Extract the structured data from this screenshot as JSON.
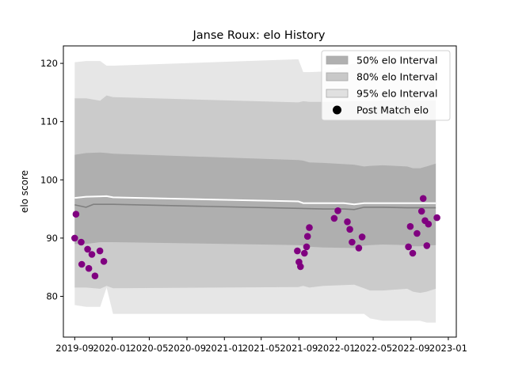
{
  "chart_data": {
    "type": "scatter",
    "title": "Janse Roux: elo History",
    "xlabel": "",
    "ylabel": "elo score",
    "x_axis_kind": "date",
    "xlim": [
      "2019-07-26",
      "2023-01-27"
    ],
    "ylim": [
      73,
      123
    ],
    "x_ticks": [
      {
        "date": "2019-09-01",
        "label": "2019-09"
      },
      {
        "date": "2020-01-01",
        "label": "2020-01"
      },
      {
        "date": "2020-05-01",
        "label": "2020-05"
      },
      {
        "date": "2020-09-01",
        "label": "2020-09"
      },
      {
        "date": "2021-01-01",
        "label": "2021-01"
      },
      {
        "date": "2021-05-01",
        "label": "2021-05"
      },
      {
        "date": "2021-09-01",
        "label": "2021-09"
      },
      {
        "date": "2022-01-01",
        "label": "2022-01"
      },
      {
        "date": "2022-05-01",
        "label": "2022-05"
      },
      {
        "date": "2022-09-01",
        "label": "2022-09"
      },
      {
        "date": "2023-01-01",
        "label": "2023-01"
      }
    ],
    "y_ticks": [
      80,
      90,
      100,
      110,
      120
    ],
    "legend_position": "top-right",
    "colors": {
      "band_50": "#aaaaaa",
      "band_80": "#c6c6c6",
      "band_95": "#e2e2e2",
      "mean_line": "#808080",
      "median_line": "#ffffff",
      "points": "#800080"
    },
    "legend": [
      {
        "label": "50% elo Interval",
        "kind": "band",
        "color": "#b0b0b0"
      },
      {
        "label": "80% elo Interval",
        "kind": "band",
        "color": "#c8c8c8"
      },
      {
        "label": "95% elo Interval",
        "kind": "band",
        "color": "#e0e0e0"
      },
      {
        "label": "Post Match elo",
        "kind": "point",
        "color": "#000000"
      }
    ],
    "series": [
      {
        "name": "95% elo Interval",
        "kind": "band",
        "x": [
          "2019-09-01",
          "2019-10-08",
          "2019-11-23",
          "2019-12-14",
          "2020-01-04",
          "2021-08-30",
          "2021-09-15",
          "2021-10-05",
          "2021-11-20",
          "2022-02-28",
          "2022-04-01",
          "2022-04-21",
          "2022-06-01",
          "2022-08-20",
          "2022-09-08",
          "2022-10-01",
          "2022-10-22",
          "2022-11-21"
        ],
        "lower": [
          78.5,
          78.2,
          78.2,
          81.5,
          77.0,
          77.0,
          77.0,
          77.0,
          77.0,
          77.0,
          77.0,
          76.2,
          75.8,
          75.8,
          75.8,
          75.8,
          75.5,
          75.5
        ],
        "upper": [
          120.2,
          120.4,
          120.4,
          119.6,
          119.6,
          120.7,
          118.5,
          118.5,
          118.6,
          120.0,
          120.0,
          120.2,
          120.2,
          119.5,
          119.5,
          119.5,
          119.5,
          120.2
        ]
      },
      {
        "name": "80% elo Interval",
        "kind": "band",
        "x": [
          "2019-09-01",
          "2019-10-08",
          "2019-11-23",
          "2019-12-14",
          "2020-01-04",
          "2021-08-30",
          "2021-09-15",
          "2021-10-05",
          "2021-11-20",
          "2022-02-28",
          "2022-04-01",
          "2022-04-21",
          "2022-06-01",
          "2022-08-20",
          "2022-09-08",
          "2022-10-01",
          "2022-10-22",
          "2022-11-21"
        ],
        "lower": [
          81.5,
          81.5,
          81.3,
          81.8,
          81.4,
          81.6,
          81.8,
          81.5,
          81.8,
          82.0,
          81.4,
          81.0,
          81.0,
          81.3,
          80.8,
          80.6,
          80.8,
          81.3
        ],
        "upper": [
          114.0,
          114.0,
          113.6,
          114.5,
          114.2,
          113.3,
          113.5,
          113.4,
          113.4,
          113.5,
          113.5,
          113.5,
          113.6,
          113.7,
          113.6,
          113.6,
          113.6,
          113.6
        ]
      },
      {
        "name": "50% elo Interval",
        "kind": "band",
        "x": [
          "2019-09-01",
          "2019-10-08",
          "2019-11-23",
          "2019-12-14",
          "2020-01-04",
          "2021-08-30",
          "2021-09-15",
          "2021-10-05",
          "2021-11-20",
          "2022-02-28",
          "2022-04-01",
          "2022-04-21",
          "2022-06-01",
          "2022-08-20",
          "2022-09-08",
          "2022-10-01",
          "2022-10-22",
          "2022-11-21"
        ],
        "lower": [
          89.0,
          89.0,
          89.3,
          89.3,
          89.3,
          88.8,
          88.7,
          88.5,
          88.4,
          88.3,
          88.7,
          88.8,
          88.9,
          88.8,
          88.6,
          88.6,
          88.7,
          88.8
        ],
        "upper": [
          104.3,
          104.6,
          104.7,
          104.6,
          104.5,
          103.4,
          103.3,
          103.0,
          102.9,
          102.6,
          102.3,
          102.4,
          102.5,
          102.3,
          102.0,
          102.0,
          102.3,
          102.8
        ]
      },
      {
        "name": "",
        "kind": "line",
        "color": "#808080",
        "x": [
          "2019-09-01",
          "2019-10-08",
          "2019-11-01",
          "2020-01-04",
          "2021-08-30",
          "2021-11-20",
          "2022-01-25",
          "2022-02-28",
          "2022-04-01",
          "2022-04-21",
          "2022-06-01",
          "2022-08-20",
          "2022-11-21"
        ],
        "values": [
          95.7,
          95.3,
          95.8,
          95.8,
          95.1,
          95.0,
          95.0,
          94.9,
          95.3,
          95.3,
          95.3,
          95.2,
          95.2
        ]
      },
      {
        "name": "",
        "kind": "line",
        "color": "#ffffff",
        "x": [
          "2019-09-01",
          "2019-10-08",
          "2019-12-14",
          "2020-01-04",
          "2021-08-30",
          "2021-09-15",
          "2022-01-25",
          "2022-02-28",
          "2022-04-01",
          "2022-08-20",
          "2022-09-08",
          "2022-11-21"
        ],
        "values": [
          96.9,
          97.1,
          97.2,
          97.0,
          96.3,
          96.0,
          96.0,
          95.8,
          96.0,
          96.0,
          96.0,
          96.0
        ]
      },
      {
        "name": "Post Match elo",
        "kind": "scatter",
        "color": "#800080",
        "points": [
          {
            "x": "2019-09-01",
            "y": 90.0
          },
          {
            "x": "2019-09-05",
            "y": 94.1
          },
          {
            "x": "2019-09-22",
            "y": 89.3
          },
          {
            "x": "2019-09-24",
            "y": 85.5
          },
          {
            "x": "2019-10-13",
            "y": 88.1
          },
          {
            "x": "2019-10-17",
            "y": 84.8
          },
          {
            "x": "2019-10-27",
            "y": 87.2
          },
          {
            "x": "2019-11-06",
            "y": 83.5
          },
          {
            "x": "2019-11-22",
            "y": 87.8
          },
          {
            "x": "2019-12-05",
            "y": 86.0
          },
          {
            "x": "2021-08-27",
            "y": 87.8
          },
          {
            "x": "2021-09-01",
            "y": 85.9
          },
          {
            "x": "2021-09-06",
            "y": 85.1
          },
          {
            "x": "2021-09-19",
            "y": 87.4
          },
          {
            "x": "2021-09-26",
            "y": 88.5
          },
          {
            "x": "2021-09-29",
            "y": 90.3
          },
          {
            "x": "2021-10-05",
            "y": 91.8
          },
          {
            "x": "2021-12-25",
            "y": 93.4
          },
          {
            "x": "2022-01-06",
            "y": 94.7
          },
          {
            "x": "2022-02-06",
            "y": 92.8
          },
          {
            "x": "2022-02-14",
            "y": 91.5
          },
          {
            "x": "2022-02-21",
            "y": 89.3
          },
          {
            "x": "2022-03-15",
            "y": 88.3
          },
          {
            "x": "2022-03-26",
            "y": 90.2
          },
          {
            "x": "2022-08-24",
            "y": 88.5
          },
          {
            "x": "2022-08-30",
            "y": 92.0
          },
          {
            "x": "2022-09-07",
            "y": 87.4
          },
          {
            "x": "2022-09-21",
            "y": 90.8
          },
          {
            "x": "2022-10-06",
            "y": 94.6
          },
          {
            "x": "2022-10-11",
            "y": 96.8
          },
          {
            "x": "2022-10-17",
            "y": 93.0
          },
          {
            "x": "2022-10-23",
            "y": 88.7
          },
          {
            "x": "2022-10-28",
            "y": 92.4
          },
          {
            "x": "2022-11-25",
            "y": 93.5
          }
        ]
      }
    ]
  }
}
